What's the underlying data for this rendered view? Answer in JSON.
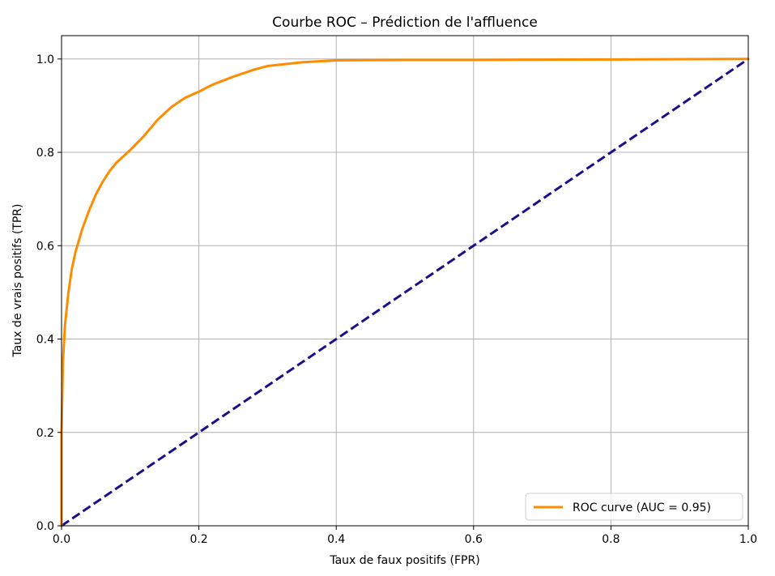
{
  "chart_data": {
    "type": "line",
    "title": "Courbe ROC – Prédiction de l'affluence",
    "xlabel": "Taux de faux positifs (FPR)",
    "ylabel": "Taux de vrais positifs (TPR)",
    "xlim": [
      0.0,
      1.0
    ],
    "ylim": [
      0.0,
      1.05
    ],
    "x_ticks": [
      "0.0",
      "0.2",
      "0.4",
      "0.6",
      "0.8",
      "1.0"
    ],
    "y_ticks": [
      "0.0",
      "0.2",
      "0.4",
      "0.6",
      "0.8",
      "1.0"
    ],
    "grid": true,
    "legend_position": "lower-right",
    "series": [
      {
        "name": "ROC curve (AUC = 0.95)",
        "color": "#ff8c00",
        "style": "solid",
        "x": [
          0.0,
          0.0,
          0.002,
          0.005,
          0.01,
          0.015,
          0.02,
          0.03,
          0.04,
          0.05,
          0.06,
          0.07,
          0.08,
          0.1,
          0.12,
          0.14,
          0.16,
          0.18,
          0.2,
          0.22,
          0.25,
          0.28,
          0.3,
          0.35,
          0.4,
          0.5,
          0.6,
          0.8,
          1.0
        ],
        "y": [
          0.0,
          0.2,
          0.35,
          0.43,
          0.5,
          0.55,
          0.585,
          0.635,
          0.675,
          0.71,
          0.737,
          0.76,
          0.778,
          0.805,
          0.835,
          0.87,
          0.897,
          0.917,
          0.93,
          0.945,
          0.962,
          0.977,
          0.985,
          0.993,
          0.997,
          0.998,
          0.998,
          0.999,
          1.0
        ]
      },
      {
        "name": "",
        "color": "#1a0f8c",
        "style": "dashed",
        "x": [
          0.0,
          1.0
        ],
        "y": [
          0.0,
          1.0
        ]
      }
    ]
  }
}
